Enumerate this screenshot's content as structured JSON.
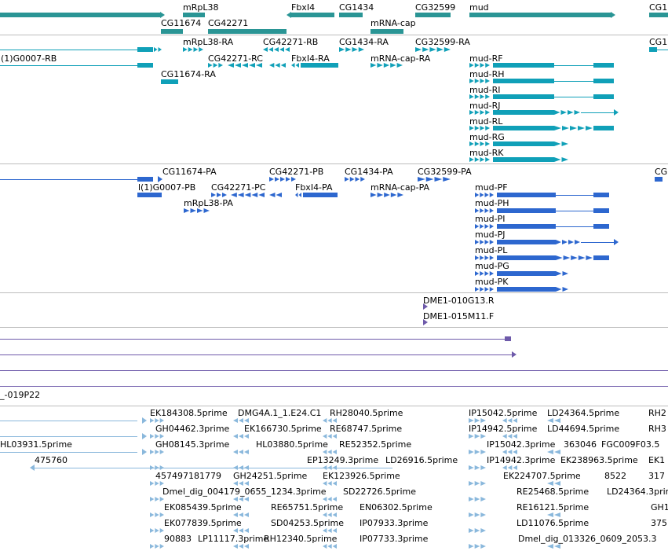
{
  "colors": {
    "gene": "#2a9595",
    "rna_track1": "#10a0b8",
    "rna_track2": "#2d67cf",
    "clone": "#6e5aaa",
    "est": "#8ab8dc",
    "divider": "#bdbdbd"
  },
  "gene_track": {
    "labels": [
      "mRpL38",
      "FbxI4",
      "CG1434",
      "CG32599",
      "mud",
      "CG1",
      "CG11674",
      "CG42271",
      "mRNA-cap"
    ]
  },
  "rna_track_1": {
    "labels": [
      "mRpL38-RA",
      "CG42271-RB",
      "CG1434-RA",
      "CG32599-RA",
      "CG1",
      "(1)G0007-RB",
      "CG42271-RC",
      "FbxI4-RA",
      "mRNA-cap-RA",
      "mud-RF",
      "CG11674-RA",
      "mud-RH",
      "mud-RI",
      "mud-RJ",
      "mud-RL",
      "mud-RG",
      "mud-RK"
    ]
  },
  "rna_track_2": {
    "labels": [
      "CG11674-PA",
      "CG42271-PB",
      "CG1434-PA",
      "CG32599-PA",
      "CG",
      "l(1)G0007-PB",
      "CG42271-PC",
      "FbxI4-PA",
      "mRNA-cap-PA",
      "mud-PF",
      "mRpL38-PA",
      "mud-PH",
      "mud-PI",
      "mud-PJ",
      "mud-PL",
      "mud-PG",
      "mud-PK"
    ]
  },
  "clone_track": {
    "labels": [
      "DME1-010G13.R",
      "DME1-015M11.F"
    ]
  },
  "clone_track_2": {
    "labels": [
      "_-019P22"
    ]
  },
  "est_track": {
    "labels": [
      "EK184308.5prime",
      "DMG4A.1_1.E24.C1",
      "RH28040.5prime",
      "IP15042.5prime",
      "LD24364.5prime",
      "RH2",
      "GH04462.3prime",
      "EK166730.5prime",
      "RE68747.5prime",
      "IP14942.5prime",
      "LD44694.5prime",
      "RH3",
      "HL03931.5prime",
      "GH08145.3prime",
      "HL03880.5prime",
      "RE52352.5prime",
      "IP15042.3prime",
      "363046",
      "FGC009F03.5",
      "475760",
      "EP13249.3prime",
      "LD26916.5prime",
      "IP14942.3prime",
      "EK238963.5prime",
      "EK1",
      "457497181779",
      "GH24251.5prime",
      "EK123926.5prime",
      "EK224707.5prime",
      "8522",
      "317",
      "Dmel_dig_004179_0655_1234.3prime",
      "SD22726.5prime",
      "RE25468.5prime",
      "LD24364.3prime",
      "EK085439.5prime",
      "RE65751.5prime",
      "EN06302.5prime",
      "RE16121.5prime",
      "GH1",
      "EK077839.5prime",
      "SD04253.5prime",
      "IP07933.3prime",
      "LD11076.5prime",
      "375",
      "90883",
      "LP11117.3prime",
      "RH12340.5prime",
      "IP07733.3prime",
      "Dmel_dig_013326_0609_2053.3"
    ]
  }
}
